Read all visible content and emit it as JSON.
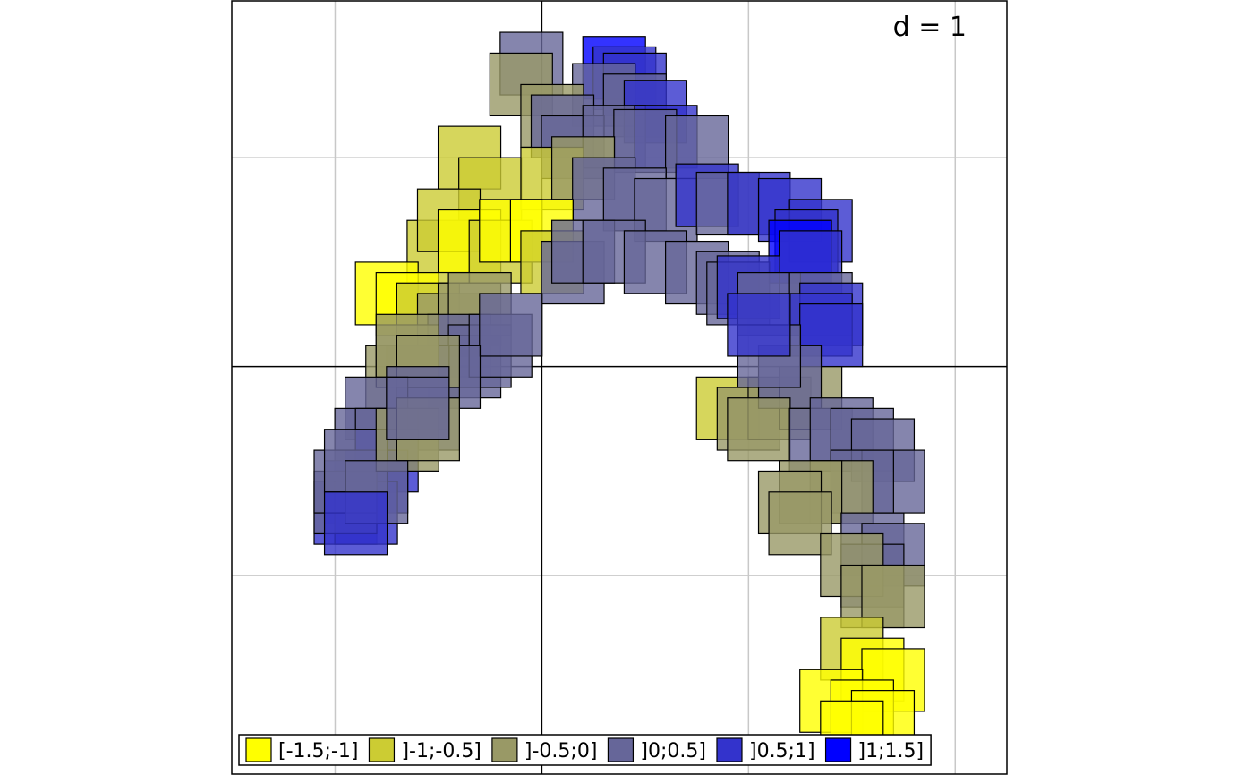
{
  "chart_data": {
    "type": "scatter",
    "marker": "square",
    "grid": true,
    "legend_position": "bottom",
    "annotation": "d = 1",
    "xlim": [
      -1.5,
      2.25
    ],
    "ylim": [
      -1.95,
      1.75
    ],
    "grid_step": 1,
    "classes": [
      {
        "label": "[-1.5;-1]",
        "color": "#FFFF00"
      },
      {
        "label": "]-1;-0.5]",
        "color": "#CCCC33"
      },
      {
        "label": "]-0.5;0]",
        "color": "#999966"
      },
      {
        "label": "]0;0.5]",
        "color": "#666699"
      },
      {
        "label": "]0.5;1]",
        "color": "#3333CC"
      },
      {
        "label": "]1;1.5]",
        "color": "#0000FF"
      }
    ],
    "points": [
      [
        -0.05,
        1.45,
        3
      ],
      [
        0.35,
        1.43,
        5
      ],
      [
        0.4,
        1.38,
        4
      ],
      [
        0.45,
        1.35,
        4
      ],
      [
        -0.1,
        1.35,
        2
      ],
      [
        0.3,
        1.3,
        3
      ],
      [
        0.45,
        1.25,
        3
      ],
      [
        0.55,
        1.22,
        4
      ],
      [
        0.05,
        1.2,
        2
      ],
      [
        0.1,
        1.15,
        3
      ],
      [
        0.15,
        1.05,
        3
      ],
      [
        0.35,
        1.1,
        3
      ],
      [
        0.6,
        1.1,
        4
      ],
      [
        0.5,
        1.08,
        3
      ],
      [
        0.75,
        1.05,
        3
      ],
      [
        -0.35,
        1.0,
        1
      ],
      [
        -0.25,
        0.85,
        1
      ],
      [
        0.05,
        0.9,
        1
      ],
      [
        0.2,
        0.95,
        2
      ],
      [
        0.3,
        0.85,
        3
      ],
      [
        0.45,
        0.8,
        3
      ],
      [
        0.6,
        0.75,
        3
      ],
      [
        0.8,
        0.82,
        4
      ],
      [
        0.9,
        0.78,
        3
      ],
      [
        1.05,
        0.78,
        4
      ],
      [
        1.2,
        0.75,
        4
      ],
      [
        1.35,
        0.65,
        4
      ],
      [
        1.28,
        0.6,
        4
      ],
      [
        1.25,
        0.55,
        5
      ],
      [
        1.3,
        0.5,
        4
      ],
      [
        -0.5,
        0.55,
        1
      ],
      [
        -0.45,
        0.7,
        1
      ],
      [
        -0.35,
        0.6,
        0
      ],
      [
        -0.2,
        0.55,
        1
      ],
      [
        -0.15,
        0.65,
        0
      ],
      [
        0.0,
        0.65,
        0
      ],
      [
        0.05,
        0.5,
        1
      ],
      [
        0.15,
        0.45,
        3
      ],
      [
        0.2,
        0.55,
        3
      ],
      [
        0.35,
        0.55,
        3
      ],
      [
        0.55,
        0.5,
        3
      ],
      [
        0.75,
        0.45,
        3
      ],
      [
        0.9,
        0.4,
        3
      ],
      [
        0.95,
        0.35,
        3
      ],
      [
        1.0,
        0.38,
        4
      ],
      [
        1.1,
        0.3,
        3
      ],
      [
        1.35,
        0.3,
        3
      ],
      [
        1.4,
        0.25,
        4
      ],
      [
        1.35,
        0.2,
        4
      ],
      [
        1.4,
        0.15,
        4
      ],
      [
        -0.75,
        0.35,
        0
      ],
      [
        -0.65,
        0.3,
        0
      ],
      [
        -0.55,
        0.25,
        1
      ],
      [
        -0.45,
        0.2,
        2
      ],
      [
        -0.35,
        0.25,
        2
      ],
      [
        -0.3,
        0.3,
        2
      ],
      [
        -0.4,
        0.1,
        3
      ],
      [
        -0.35,
        0.0,
        3
      ],
      [
        -0.3,
        0.05,
        3
      ],
      [
        -0.2,
        0.1,
        3
      ],
      [
        -0.15,
        0.2,
        3
      ],
      [
        -0.45,
        -0.05,
        3
      ],
      [
        -0.6,
        -0.05,
        3
      ],
      [
        -0.7,
        -0.05,
        2
      ],
      [
        -0.65,
        0.05,
        2
      ],
      [
        -0.65,
        0.1,
        2
      ],
      [
        -0.55,
        0.0,
        2
      ],
      [
        -0.6,
        -0.15,
        3
      ],
      [
        -0.55,
        -0.25,
        3
      ],
      [
        -0.8,
        -0.2,
        3
      ],
      [
        -0.85,
        -0.35,
        3
      ],
      [
        -0.75,
        -0.35,
        3
      ],
      [
        -0.75,
        -0.45,
        4
      ],
      [
        -0.8,
        -0.55,
        4
      ],
      [
        -0.9,
        -0.6,
        4
      ],
      [
        -0.95,
        -0.7,
        4
      ],
      [
        -0.85,
        -0.7,
        4
      ],
      [
        -0.95,
        -0.65,
        3
      ],
      [
        -0.95,
        -0.55,
        3
      ],
      [
        -0.9,
        -0.45,
        3
      ],
      [
        -0.65,
        -0.35,
        2
      ],
      [
        -0.55,
        -0.3,
        2
      ],
      [
        -0.6,
        -0.2,
        3
      ],
      [
        -0.8,
        -0.6,
        3
      ],
      [
        -0.9,
        -0.75,
        4
      ],
      [
        0.9,
        -0.2,
        1
      ],
      [
        1.0,
        -0.25,
        2
      ],
      [
        1.15,
        -0.2,
        2
      ],
      [
        1.3,
        -0.15,
        2
      ],
      [
        1.2,
        -0.05,
        3
      ],
      [
        1.1,
        0.05,
        3
      ],
      [
        1.05,
        0.2,
        4
      ],
      [
        1.05,
        -0.3,
        2
      ],
      [
        1.35,
        -0.35,
        3
      ],
      [
        1.45,
        -0.3,
        3
      ],
      [
        1.55,
        -0.35,
        3
      ],
      [
        1.65,
        -0.4,
        3
      ],
      [
        1.7,
        -0.55,
        3
      ],
      [
        1.55,
        -0.55,
        3
      ],
      [
        1.45,
        -0.6,
        2
      ],
      [
        1.3,
        -0.6,
        2
      ],
      [
        1.2,
        -0.65,
        2
      ],
      [
        1.25,
        -0.75,
        2
      ],
      [
        1.6,
        -0.85,
        3
      ],
      [
        1.7,
        -0.9,
        3
      ],
      [
        1.6,
        -1.0,
        3
      ],
      [
        1.5,
        -0.95,
        2
      ],
      [
        1.6,
        -1.1,
        2
      ],
      [
        1.7,
        -1.1,
        2
      ],
      [
        1.5,
        -1.35,
        1
      ],
      [
        1.6,
        -1.45,
        0
      ],
      [
        1.7,
        -1.5,
        0
      ],
      [
        1.4,
        -1.6,
        0
      ],
      [
        1.55,
        -1.65,
        0
      ],
      [
        1.65,
        -1.7,
        0
      ],
      [
        1.5,
        -1.75,
        0
      ]
    ]
  }
}
